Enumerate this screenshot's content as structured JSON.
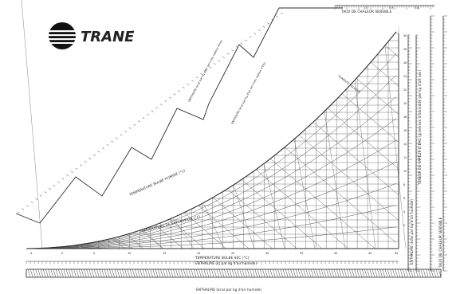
{
  "brand": {
    "name": "TRANE",
    "trademark": "™"
  },
  "labels": {
    "sensible_heat_ratio_top": "TAUX DE CHALEUR SENSIBLE",
    "sensible_heat_ratio_right": "TAUX DE CHALEUR SENSIBLE",
    "wet_bulb": "TEMPERATURE BULBE HUMIDE (°C)",
    "saturation": "TEMPERATURE DE SATURATION (°C)",
    "dry_bulb": "TEMPERATURE BULBE SEC (°C)",
    "enthalpy_dry_air": "ENTHALPIE (kJ par kg d'air humide)",
    "enthalpy_bottom": "ENTHALPIE (kcal par kg d'air humide)",
    "vapor_content": "TENEUR EN VAPEUR D'EAU (grammes d'humidité par kg d'air sec)",
    "enthalpy_right": "ENTHALPIE (kcal par kg d'air humide)",
    "enthalpy_step_1": "ENTHALPIE (kcal par kg d'air sec) eau vapeur d'eau",
    "enthalpy_step_2": "ENTHALPIE (kcal par kg d'air sec) eau vapeur d'eau",
    "relative_humidity": "HUMIDITE RELATIVE"
  },
  "scales": {
    "dry_bulb_ticks": [
      "-5",
      "0",
      "5",
      "10",
      "15",
      "20",
      "25",
      "30",
      "35",
      "40",
      "45",
      "50"
    ],
    "shr_top_ticks": [
      "1.0",
      "0.9",
      "0.8"
    ],
    "humidity_ticks": [
      "30",
      "28",
      "26",
      "24",
      "22",
      "20",
      "18",
      "16",
      "14",
      "12",
      "10",
      "8",
      "6",
      "4",
      "2"
    ]
  },
  "colors": {
    "ink": "#2b2b2b",
    "grid": "#555555",
    "paper": "#ffffff"
  }
}
